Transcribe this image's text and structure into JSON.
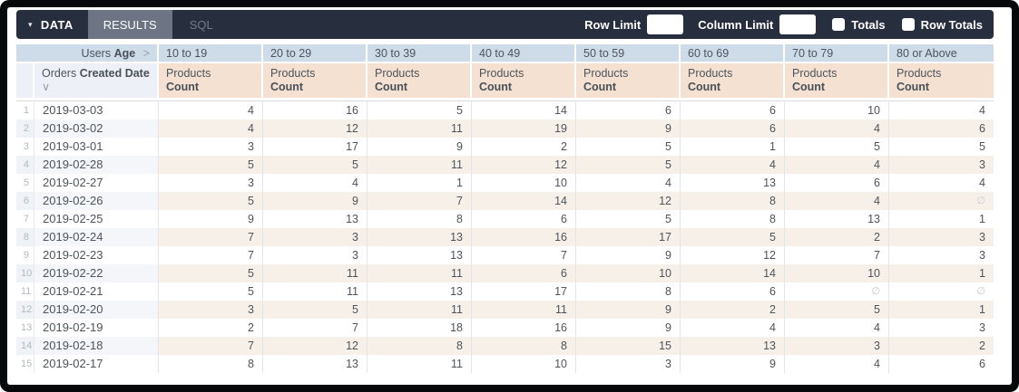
{
  "toolbar": {
    "data_tab": "DATA",
    "results_tab": "RESULTS",
    "sql_tab": "SQL",
    "row_limit_label": "Row Limit",
    "row_limit_value": "",
    "column_limit_label": "Column Limit",
    "column_limit_value": "",
    "totals_label": "Totals",
    "totals_checked": false,
    "row_totals_label": "Row Totals",
    "row_totals_checked": false
  },
  "icons": {
    "caret_down": "▾",
    "pivot_expand": ">",
    "sort_desc": "∨"
  },
  "table": {
    "pivot_dimension": {
      "normal": "Users",
      "bold": "Age"
    },
    "age_buckets": [
      "10 to 19",
      "20 to 29",
      "30 to 39",
      "40 to 49",
      "50 to 59",
      "60 to 69",
      "70 to 79",
      "80 or Above"
    ],
    "row_dimension": {
      "normal": "Orders",
      "bold": "Created Date"
    },
    "measure": {
      "normal": "Products",
      "bold": "Count"
    },
    "null_glyph": "∅",
    "rows": [
      {
        "n": 1,
        "date": "2019-03-03",
        "values": [
          4,
          16,
          5,
          14,
          6,
          6,
          10,
          4
        ]
      },
      {
        "n": 2,
        "date": "2019-03-02",
        "values": [
          4,
          12,
          11,
          19,
          9,
          6,
          4,
          6
        ]
      },
      {
        "n": 3,
        "date": "2019-03-01",
        "values": [
          3,
          17,
          9,
          2,
          5,
          1,
          5,
          5
        ]
      },
      {
        "n": 4,
        "date": "2019-02-28",
        "values": [
          5,
          5,
          11,
          12,
          5,
          4,
          4,
          3
        ]
      },
      {
        "n": 5,
        "date": "2019-02-27",
        "values": [
          3,
          4,
          1,
          10,
          4,
          13,
          6,
          4
        ]
      },
      {
        "n": 6,
        "date": "2019-02-26",
        "values": [
          5,
          9,
          7,
          14,
          12,
          8,
          4,
          null
        ]
      },
      {
        "n": 7,
        "date": "2019-02-25",
        "values": [
          9,
          13,
          8,
          6,
          5,
          8,
          13,
          1
        ]
      },
      {
        "n": 8,
        "date": "2019-02-24",
        "values": [
          7,
          3,
          13,
          16,
          17,
          5,
          2,
          3
        ]
      },
      {
        "n": 9,
        "date": "2019-02-23",
        "values": [
          7,
          3,
          13,
          7,
          9,
          12,
          7,
          3
        ]
      },
      {
        "n": 10,
        "date": "2019-02-22",
        "values": [
          5,
          11,
          11,
          6,
          10,
          14,
          10,
          1
        ]
      },
      {
        "n": 11,
        "date": "2019-02-21",
        "values": [
          5,
          11,
          13,
          17,
          8,
          6,
          null,
          null
        ]
      },
      {
        "n": 12,
        "date": "2019-02-20",
        "values": [
          3,
          5,
          11,
          11,
          9,
          2,
          5,
          1
        ]
      },
      {
        "n": 13,
        "date": "2019-02-19",
        "values": [
          2,
          7,
          18,
          16,
          9,
          4,
          4,
          3
        ]
      },
      {
        "n": 14,
        "date": "2019-02-18",
        "values": [
          7,
          12,
          8,
          8,
          15,
          13,
          3,
          2
        ]
      },
      {
        "n": 15,
        "date": "2019-02-17",
        "values": [
          8,
          13,
          11,
          10,
          3,
          9,
          4,
          6
        ]
      }
    ]
  },
  "colors": {
    "toolbar_bg": "#272e3d",
    "active_tab_bg": "#6d7484",
    "sql_tab_text": "#727b8c",
    "pivot_header_bg": "#cedbe9",
    "dimension_header_bg": "#edf1f7",
    "measure_header_bg": "#f5e1d1",
    "row_tint_dimension": "#f4f6f9",
    "row_tint_measure": "#f7f0e9",
    "body_text": "#4d545c",
    "row_number_text": "#b3bac2",
    "frame_bg": "#070809"
  }
}
